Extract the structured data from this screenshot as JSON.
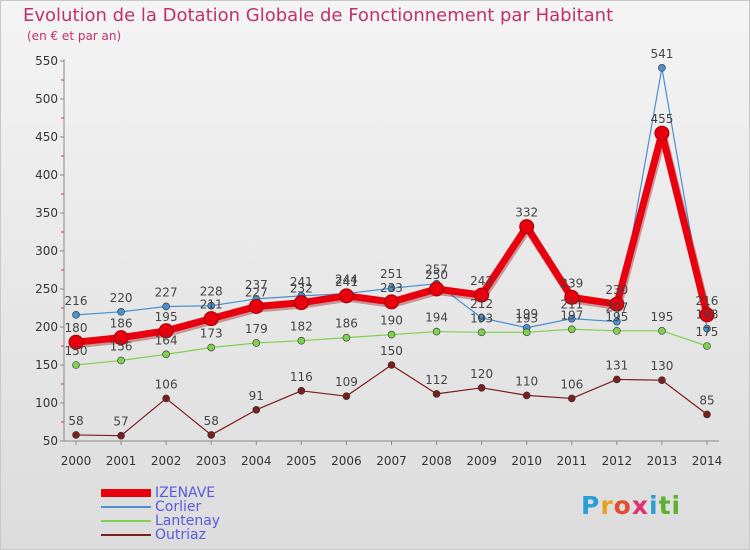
{
  "header": {
    "title": "Evolution de la Dotation Globale de Fonctionnement par Habitant",
    "subtitle": "(en € et par an)"
  },
  "logo": {
    "letters": [
      "P",
      "r",
      "o",
      "x",
      "i",
      "t",
      "i"
    ],
    "colors": [
      "#2a9fd6",
      "#e8a020",
      "#e05030",
      "#e03070",
      "#2a9fd6",
      "#60b030",
      "#60b030"
    ]
  },
  "chart_data": {
    "type": "line",
    "x": [
      2000,
      2001,
      2002,
      2003,
      2004,
      2005,
      2006,
      2007,
      2008,
      2009,
      2010,
      2011,
      2012,
      2013,
      2014
    ],
    "ylim": [
      50,
      550
    ],
    "yticks": [
      50,
      100,
      150,
      200,
      250,
      300,
      350,
      400,
      450,
      500,
      550
    ],
    "grid": false,
    "legend_position": "bottom-left",
    "series": [
      {
        "name": "IZENAVE",
        "color": "#e8000e",
        "values": [
          180,
          186,
          195,
          211,
          227,
          232,
          241,
          233,
          250,
          242,
          332,
          239,
          230,
          455,
          216
        ]
      },
      {
        "name": "Corlier",
        "color": "#4a90d0",
        "values": [
          216,
          220,
          227,
          228,
          237,
          241,
          244,
          251,
          257,
          212,
          199,
          211,
          207,
          541,
          198
        ]
      },
      {
        "name": "Lantenay",
        "color": "#80d050",
        "values": [
          150,
          156,
          164,
          173,
          179,
          182,
          186,
          190,
          194,
          193,
          193,
          197,
          195,
          195,
          175
        ]
      },
      {
        "name": "Outriaz",
        "color": "#7a1e1e",
        "values": [
          58,
          57,
          106,
          58,
          91,
          116,
          109,
          150,
          112,
          120,
          110,
          106,
          131,
          130,
          85
        ]
      }
    ]
  }
}
